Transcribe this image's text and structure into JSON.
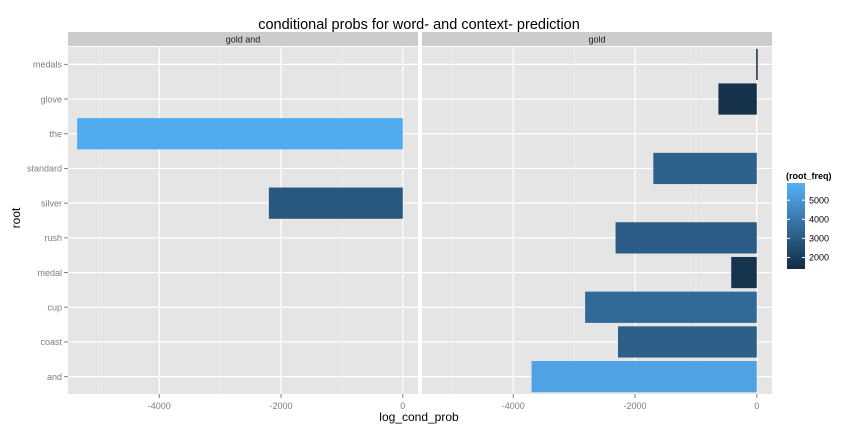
{
  "chart_data": {
    "type": "bar",
    "orientation": "horizontal",
    "title": "conditional probs for word- and context- prediction",
    "xlabel": "log_cond_prob",
    "ylabel": "root",
    "categories": [
      "medals",
      "glove",
      "the",
      "standard",
      "silver",
      "rush",
      "medal",
      "cup",
      "coast",
      "and"
    ],
    "x_ticks": [
      -4000,
      -2000,
      0
    ],
    "x_tick_labels": [
      "-4000",
      "-2000",
      "0"
    ],
    "xlim": [
      -5500,
      250
    ],
    "grid": true,
    "facets": [
      {
        "label": "gold and",
        "bars": [
          {
            "root": "the",
            "log_cond_prob": -5350,
            "root_freq": 5700
          },
          {
            "root": "silver",
            "log_cond_prob": -2200,
            "root_freq": 2900
          }
        ]
      },
      {
        "label": "gold",
        "bars": [
          {
            "root": "medals",
            "log_cond_prob": -10,
            "root_freq": 1500
          },
          {
            "root": "glove",
            "log_cond_prob": -630,
            "root_freq": 1600
          },
          {
            "root": "standard",
            "log_cond_prob": -1700,
            "root_freq": 3200
          },
          {
            "root": "rush",
            "log_cond_prob": -2320,
            "root_freq": 3050
          },
          {
            "root": "medal",
            "log_cond_prob": -420,
            "root_freq": 1700
          },
          {
            "root": "cup",
            "log_cond_prob": -2820,
            "root_freq": 3500
          },
          {
            "root": "coast",
            "log_cond_prob": -2280,
            "root_freq": 3150
          },
          {
            "root": "and",
            "log_cond_prob": -3700,
            "root_freq": 5400
          }
        ]
      }
    ],
    "legend": {
      "title": "(root_freq)",
      "position": "right",
      "ticks": [
        5000,
        4000,
        3000,
        2000
      ],
      "tick_labels": [
        "5000",
        "4000",
        "3000",
        "2000"
      ],
      "range": [
        1400,
        5900
      ],
      "low_color": "#132B43",
      "high_color": "#56B1F7"
    }
  }
}
